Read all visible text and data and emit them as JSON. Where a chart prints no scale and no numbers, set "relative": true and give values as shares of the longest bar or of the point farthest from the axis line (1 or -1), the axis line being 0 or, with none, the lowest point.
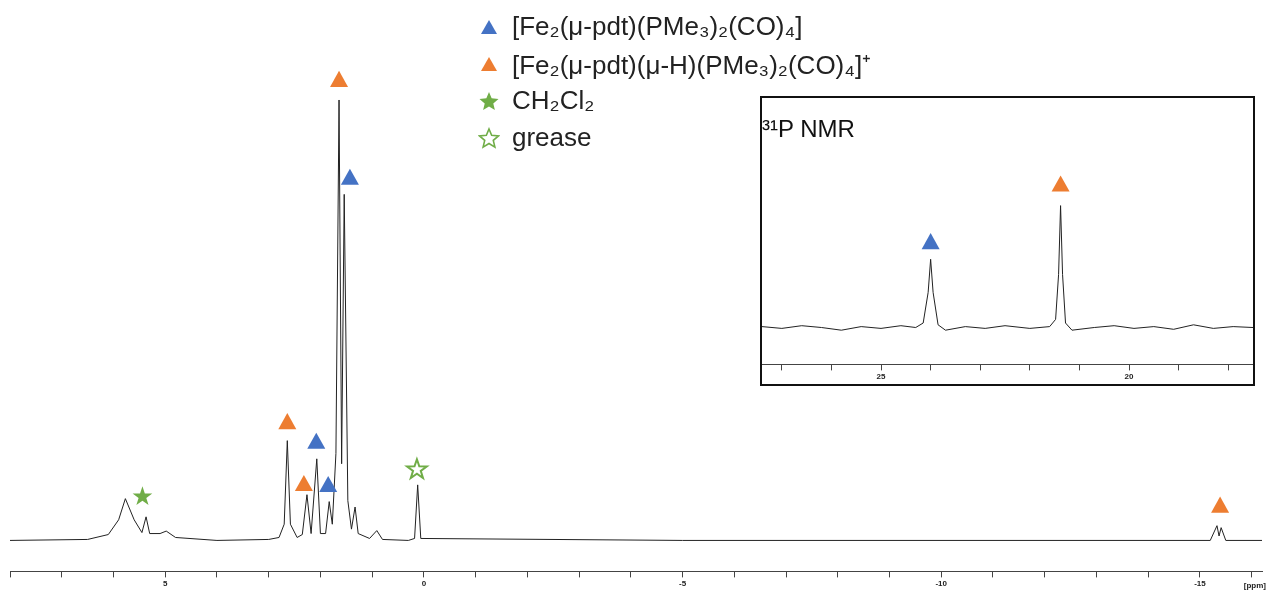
{
  "chart_data": [
    {
      "type": "line",
      "xlabel": "[ppm]",
      "relative": true,
      "legend": "top",
      "xlim": [
        8,
        -16.2
      ],
      "xticks": [
        {
          "value": 8,
          "label": null
        },
        {
          "value": 7,
          "label": null
        },
        {
          "value": 6,
          "label": null
        },
        5,
        {
          "value": 4,
          "label": null
        },
        {
          "value": 3,
          "label": null
        },
        {
          "value": 2,
          "label": null
        },
        {
          "value": 1,
          "label": null
        },
        0,
        {
          "value": -1,
          "label": null
        },
        {
          "value": -2,
          "label": null
        },
        {
          "value": -3,
          "label": null
        },
        {
          "value": -4,
          "label": null
        },
        -5,
        {
          "value": -6,
          "label": null
        },
        {
          "value": -7,
          "label": null
        },
        {
          "value": -8,
          "label": null
        },
        {
          "value": -9,
          "label": null
        },
        -10,
        {
          "value": -11,
          "label": null
        },
        {
          "value": -12,
          "label": null
        },
        {
          "value": -13,
          "label": null
        },
        {
          "value": -14,
          "label": null
        },
        -15,
        {
          "value": -16,
          "label": null
        }
      ],
      "series": [
        {
          "type": "line",
          "color": "#222222",
          "x": [
            8.0,
            6.5,
            6.1,
            5.9,
            5.77,
            5.6,
            5.45,
            5.37,
            5.3,
            5.1,
            4.98,
            4.8,
            4.0,
            3.0,
            2.8,
            2.7,
            2.64,
            2.58,
            2.45,
            2.35,
            2.26,
            2.18,
            2.07,
            2.0,
            1.9,
            1.83,
            1.77,
            1.7,
            1.64,
            1.59,
            1.54,
            1.47,
            1.4,
            1.33,
            1.27,
            1.05,
            0.91,
            0.8,
            0.3,
            0.18,
            0.12,
            0.06,
            -5,
            -15.2,
            -15.33,
            -15.37,
            -15.41,
            -15.5,
            -16.2
          ],
          "values": [
            0.063,
            0.065,
            0.075,
            0.105,
            0.148,
            0.105,
            0.079,
            0.111,
            0.077,
            0.077,
            0.082,
            0.069,
            0.063,
            0.065,
            0.069,
            0.096,
            0.266,
            0.096,
            0.069,
            0.075,
            0.156,
            0.077,
            0.229,
            0.077,
            0.077,
            0.142,
            0.096,
            0.24,
            0.959,
            0.219,
            0.767,
            0.144,
            0.086,
            0.131,
            0.077,
            0.067,
            0.083,
            0.065,
            0.063,
            0.067,
            0.176,
            0.067,
            0.063,
            0.063,
            0.093,
            0.072,
            0.089,
            0.063,
            0.063
          ]
        },
        {
          "type": "scatter",
          "marker": "triangle",
          "name": "[Fe₂(μ-pdt)(PMe₃)₂(CO)₄]",
          "color": "#4472c4",
          "x": [
            2.08,
            1.85,
            1.43
          ],
          "values": [
            0.264,
            0.176,
            0.801
          ]
        },
        {
          "type": "scatter",
          "marker": "triangle",
          "name": "[Fe₂(μ-pdt)(μ-H)(PMe₃)₂(CO)₄]⁺",
          "color": "#ed7d31",
          "x": [
            2.64,
            2.32,
            1.64,
            -15.39
          ],
          "values": [
            0.304,
            0.178,
            1.0,
            0.134
          ]
        },
        {
          "type": "scatter",
          "marker": "star",
          "name": "CH₂Cl₂",
          "color": "#70ad47",
          "x": [
            5.44
          ],
          "values": [
            0.152
          ]
        },
        {
          "type": "scatter",
          "marker": "star-open",
          "name": "grease",
          "color": "#70ad47",
          "x": [
            0.135
          ],
          "values": [
            0.207
          ]
        }
      ]
    },
    {
      "type": "line",
      "title": "³¹P NMR",
      "relative": true,
      "xlim": [
        27.4,
        17.5
      ],
      "xticks": [
        {
          "value": 27,
          "label": null
        },
        {
          "value": 26,
          "label": null
        },
        25,
        {
          "value": 24,
          "label": null
        },
        {
          "value": 23,
          "label": null
        },
        {
          "value": 22,
          "label": null
        },
        {
          "value": 21,
          "label": null
        },
        20,
        {
          "value": 19,
          "label": null
        },
        {
          "value": 18,
          "label": null
        }
      ],
      "series": [
        {
          "type": "line",
          "color": "#222222",
          "x": [
            27.4,
            27.0,
            26.6,
            26.2,
            25.8,
            25.4,
            25.0,
            24.6,
            24.3,
            24.15,
            24.05,
            24.0,
            23.95,
            23.85,
            23.7,
            23.3,
            22.9,
            22.5,
            22.0,
            21.6,
            21.48,
            21.42,
            21.38,
            21.34,
            21.28,
            21.15,
            20.7,
            20.3,
            19.9,
            19.5,
            19.1,
            18.7,
            18.3,
            17.9,
            17.5
          ],
          "values": [
            0.21,
            0.2,
            0.215,
            0.205,
            0.19,
            0.21,
            0.2,
            0.215,
            0.205,
            0.23,
            0.4,
            0.584,
            0.4,
            0.22,
            0.19,
            0.21,
            0.2,
            0.215,
            0.2,
            0.21,
            0.25,
            0.5,
            0.882,
            0.5,
            0.23,
            0.19,
            0.205,
            0.215,
            0.2,
            0.21,
            0.195,
            0.22,
            0.2,
            0.21,
            0.205
          ]
        },
        {
          "type": "scatter",
          "marker": "triangle",
          "color": "#4472c4",
          "x": [
            24.0
          ],
          "values": [
            0.68
          ]
        },
        {
          "type": "scatter",
          "marker": "triangle",
          "color": "#ed7d31",
          "x": [
            21.38
          ],
          "values": [
            1.0
          ]
        }
      ]
    }
  ]
}
